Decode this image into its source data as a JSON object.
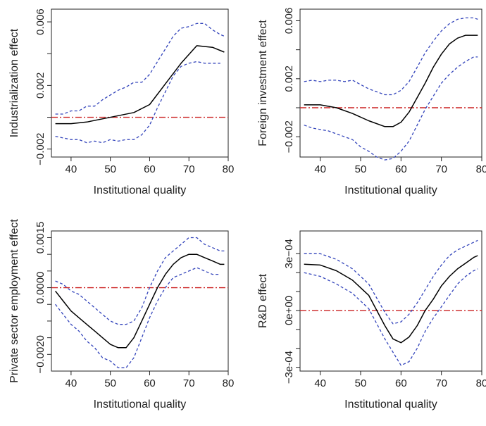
{
  "chart_data": [
    {
      "type": "line",
      "xlabel": "Institutional quality",
      "ylabel": "Industrialization effect",
      "xlim": [
        35,
        80
      ],
      "ylim": [
        -0.0025,
        0.0068
      ],
      "xticks": [
        "40",
        "50",
        "60",
        "70",
        "80"
      ],
      "xtick_values": [
        40,
        50,
        60,
        70,
        80
      ],
      "yticks": [
        "-0.002",
        "0.002",
        "0.006"
      ],
      "ytick_values": [
        -0.002,
        0.002,
        0.006
      ],
      "ytick_minor": [
        0,
        0.004
      ],
      "reference_line": 0,
      "colors": {
        "estimate": "#000000",
        "band": "#3344bb",
        "reference": "#cc2222"
      },
      "series": [
        {
          "role": "estimate",
          "x": [
            36,
            40,
            44,
            48,
            52,
            56,
            60,
            64,
            68,
            72,
            76,
            79
          ],
          "values": [
            -0.0004,
            -0.0004,
            -0.0003,
            -0.0001,
            0.0001,
            0.0003,
            0.0008,
            0.0021,
            0.0034,
            0.0045,
            0.0044,
            0.0041
          ]
        },
        {
          "role": "upper",
          "x": [
            36,
            38,
            40,
            42,
            44,
            46,
            48,
            50,
            52,
            54,
            56,
            58,
            60,
            62,
            64,
            66,
            68,
            70,
            72,
            74,
            76,
            78,
            79
          ],
          "values": [
            0.0002,
            0.0002,
            0.0004,
            0.0004,
            0.0007,
            0.0007,
            0.0011,
            0.0014,
            0.0017,
            0.0019,
            0.0022,
            0.0022,
            0.0027,
            0.0035,
            0.0043,
            0.0051,
            0.0056,
            0.0057,
            0.0059,
            0.0059,
            0.0055,
            0.0052,
            0.0051
          ]
        },
        {
          "role": "lower",
          "x": [
            36,
            38,
            40,
            42,
            44,
            46,
            48,
            50,
            52,
            54,
            56,
            58,
            60,
            62,
            64,
            66,
            68,
            70,
            72,
            74,
            76,
            78
          ],
          "values": [
            -0.0012,
            -0.0013,
            -0.0014,
            -0.0014,
            -0.0016,
            -0.0015,
            -0.0016,
            -0.0014,
            -0.0015,
            -0.0014,
            -0.0014,
            -0.0011,
            -0.0005,
            0.0006,
            0.0016,
            0.0026,
            0.0032,
            0.0034,
            0.0035,
            0.0034,
            0.0034,
            0.0034
          ]
        }
      ]
    },
    {
      "type": "line",
      "xlabel": "Institutional quality",
      "ylabel": "Foreign investment effect",
      "xlim": [
        35,
        80
      ],
      "ylim": [
        -0.0034,
        0.0068
      ],
      "xticks": [
        "40",
        "50",
        "60",
        "70",
        "80"
      ],
      "xtick_values": [
        40,
        50,
        60,
        70,
        80
      ],
      "yticks": [
        "-0.002",
        "0.002",
        "0.006"
      ],
      "ytick_values": [
        -0.002,
        0.002,
        0.006
      ],
      "ytick_minor": [
        0,
        0.004
      ],
      "reference_line": 0,
      "colors": {
        "estimate": "#000000",
        "band": "#3344bb",
        "reference": "#cc2222"
      },
      "series": [
        {
          "role": "estimate",
          "x": [
            36,
            40,
            44,
            48,
            52,
            56,
            58,
            60,
            62,
            64,
            66,
            68,
            70,
            72,
            74,
            76,
            78,
            79
          ],
          "values": [
            0.0002,
            0.0002,
            0,
            -0.0004,
            -0.0009,
            -0.0013,
            -0.0013,
            -0.001,
            -0.0003,
            0.0007,
            0.0017,
            0.0028,
            0.0037,
            0.0044,
            0.0048,
            0.005,
            0.005,
            0.005
          ]
        },
        {
          "role": "upper",
          "x": [
            36,
            38,
            40,
            42,
            44,
            46,
            48,
            50,
            52,
            54,
            56,
            58,
            60,
            62,
            64,
            66,
            68,
            70,
            72,
            74,
            76,
            78,
            79
          ],
          "values": [
            0.0018,
            0.0019,
            0.0018,
            0.0019,
            0.0019,
            0.0018,
            0.0019,
            0.0016,
            0.0013,
            0.0011,
            0.0009,
            0.0009,
            0.0012,
            0.0018,
            0.0028,
            0.0038,
            0.0046,
            0.0053,
            0.0058,
            0.0061,
            0.0062,
            0.0062,
            0.0061
          ]
        },
        {
          "role": "lower",
          "x": [
            36,
            38,
            40,
            42,
            44,
            46,
            48,
            50,
            52,
            54,
            56,
            58,
            60,
            62,
            64,
            66,
            68,
            70,
            72,
            74,
            76,
            78,
            79
          ],
          "values": [
            -0.0012,
            -0.0014,
            -0.0015,
            -0.0016,
            -0.0018,
            -0.002,
            -0.0022,
            -0.0027,
            -0.003,
            -0.0034,
            -0.0036,
            -0.0035,
            -0.003,
            -0.0023,
            -0.0012,
            -0.0001,
            0.0008,
            0.0017,
            0.0023,
            0.0028,
            0.0032,
            0.0035,
            0.0035
          ]
        }
      ]
    },
    {
      "type": "line",
      "xlabel": "Institutional quality",
      "ylabel": "Private sector employment effect",
      "xlim": [
        35,
        80
      ],
      "ylim": [
        -0.0025,
        0.0017
      ],
      "xticks": [
        "40",
        "50",
        "60",
        "70",
        "80"
      ],
      "xtick_values": [
        40,
        50,
        60,
        70,
        80
      ],
      "yticks": [
        "-0.0020",
        "0.0000",
        "0.0015"
      ],
      "ytick_values": [
        -0.002,
        0,
        0.0015
      ],
      "ytick_minor": [
        -0.0015,
        -0.001,
        -0.0005,
        0.0005,
        0.001
      ],
      "reference_line": 0,
      "colors": {
        "estimate": "#000000",
        "band": "#3344bb",
        "reference": "#cc2222"
      },
      "series": [
        {
          "role": "estimate",
          "x": [
            36,
            38,
            40,
            42,
            44,
            46,
            48,
            50,
            52,
            54,
            56,
            58,
            60,
            62,
            64,
            66,
            68,
            70,
            72,
            74,
            76,
            78,
            79
          ],
          "values": [
            -0.0001,
            -0.0004,
            -0.0007,
            -0.0009,
            -0.0011,
            -0.0013,
            -0.0015,
            -0.0017,
            -0.0018,
            -0.0018,
            -0.0015,
            -0.001,
            -0.0005,
            0,
            0.0004,
            0.0007,
            0.0009,
            0.001,
            0.001,
            0.0009,
            0.0008,
            0.0007,
            0.0007
          ]
        },
        {
          "role": "upper",
          "x": [
            36,
            38,
            40,
            42,
            44,
            46,
            48,
            50,
            52,
            54,
            56,
            58,
            60,
            62,
            64,
            66,
            68,
            70,
            72,
            74,
            76,
            78,
            79
          ],
          "values": [
            0.0002,
            0.0001,
            -0.0001,
            -0.0002,
            -0.0004,
            -0.0006,
            -0.0008,
            -0.001,
            -0.0011,
            -0.0011,
            -0.001,
            -0.0006,
            0,
            0.0005,
            0.0009,
            0.0011,
            0.0013,
            0.0015,
            0.0015,
            0.0013,
            0.0012,
            0.0011,
            0.0011
          ]
        },
        {
          "role": "lower",
          "x": [
            36,
            38,
            40,
            42,
            44,
            46,
            48,
            50,
            52,
            54,
            56,
            58,
            60,
            62,
            64,
            66,
            68,
            70,
            72,
            74,
            76,
            78
          ],
          "values": [
            -0.0005,
            -0.0008,
            -0.0011,
            -0.0013,
            -0.0016,
            -0.0018,
            -0.0021,
            -0.0022,
            -0.0024,
            -0.0024,
            -0.0021,
            -0.0015,
            -0.0009,
            -0.0004,
            0,
            0.0003,
            0.0004,
            0.0005,
            0.0006,
            0.0005,
            0.0004,
            0.0004
          ]
        }
      ]
    },
    {
      "type": "line",
      "xlabel": "Institutional quality",
      "ylabel": "R&D effect",
      "xlim": [
        35,
        80
      ],
      "ylim": [
        -0.00032,
        0.00042
      ],
      "xticks": [
        "40",
        "50",
        "60",
        "70",
        "80"
      ],
      "xtick_values": [
        40,
        50,
        60,
        70,
        80
      ],
      "yticks": [
        "-3e-04",
        "0e+00",
        "3e-04"
      ],
      "ytick_values": [
        -0.0003,
        0,
        0.0003
      ],
      "ytick_minor": [
        -0.0002,
        -0.0001,
        0.0001,
        0.0002
      ],
      "reference_line": 0,
      "colors": {
        "estimate": "#000000",
        "band": "#3344bb",
        "reference": "#cc2222"
      },
      "series": [
        {
          "role": "estimate",
          "x": [
            36,
            40,
            44,
            48,
            52,
            56,
            58,
            60,
            62,
            64,
            66,
            68,
            70,
            72,
            74,
            76,
            78,
            79
          ],
          "values": [
            0.000244,
            0.00024,
            0.00021,
            0.00016,
            8e-05,
            -8e-05,
            -0.00015,
            -0.00017,
            -0.00014,
            -8e-05,
            0,
            6e-05,
            0.00013,
            0.00018,
            0.00022,
            0.00025,
            0.00028,
            0.00029
          ]
        },
        {
          "role": "upper",
          "x": [
            36,
            40,
            44,
            48,
            52,
            56,
            58,
            60,
            62,
            64,
            66,
            68,
            70,
            72,
            74,
            76,
            78,
            79
          ],
          "values": [
            0.0003,
            0.0003,
            0.00027,
            0.00022,
            0.00014,
            -1e-05,
            -7e-05,
            -6e-05,
            -2e-05,
            4e-05,
            0.00011,
            0.00018,
            0.00024,
            0.00029,
            0.00032,
            0.00034,
            0.00036,
            0.00037
          ]
        },
        {
          "role": "lower",
          "x": [
            36,
            40,
            44,
            48,
            52,
            56,
            58,
            60,
            62,
            64,
            66,
            68,
            70,
            72,
            74,
            76,
            78,
            79
          ],
          "values": [
            0.0002,
            0.00018,
            0.00014,
            9e-05,
            1e-05,
            -0.00015,
            -0.00022,
            -0.00029,
            -0.00027,
            -0.0002,
            -0.00011,
            -4e-05,
            2e-05,
            8e-05,
            0.00014,
            0.00018,
            0.00021,
            0.00022
          ]
        }
      ]
    }
  ]
}
